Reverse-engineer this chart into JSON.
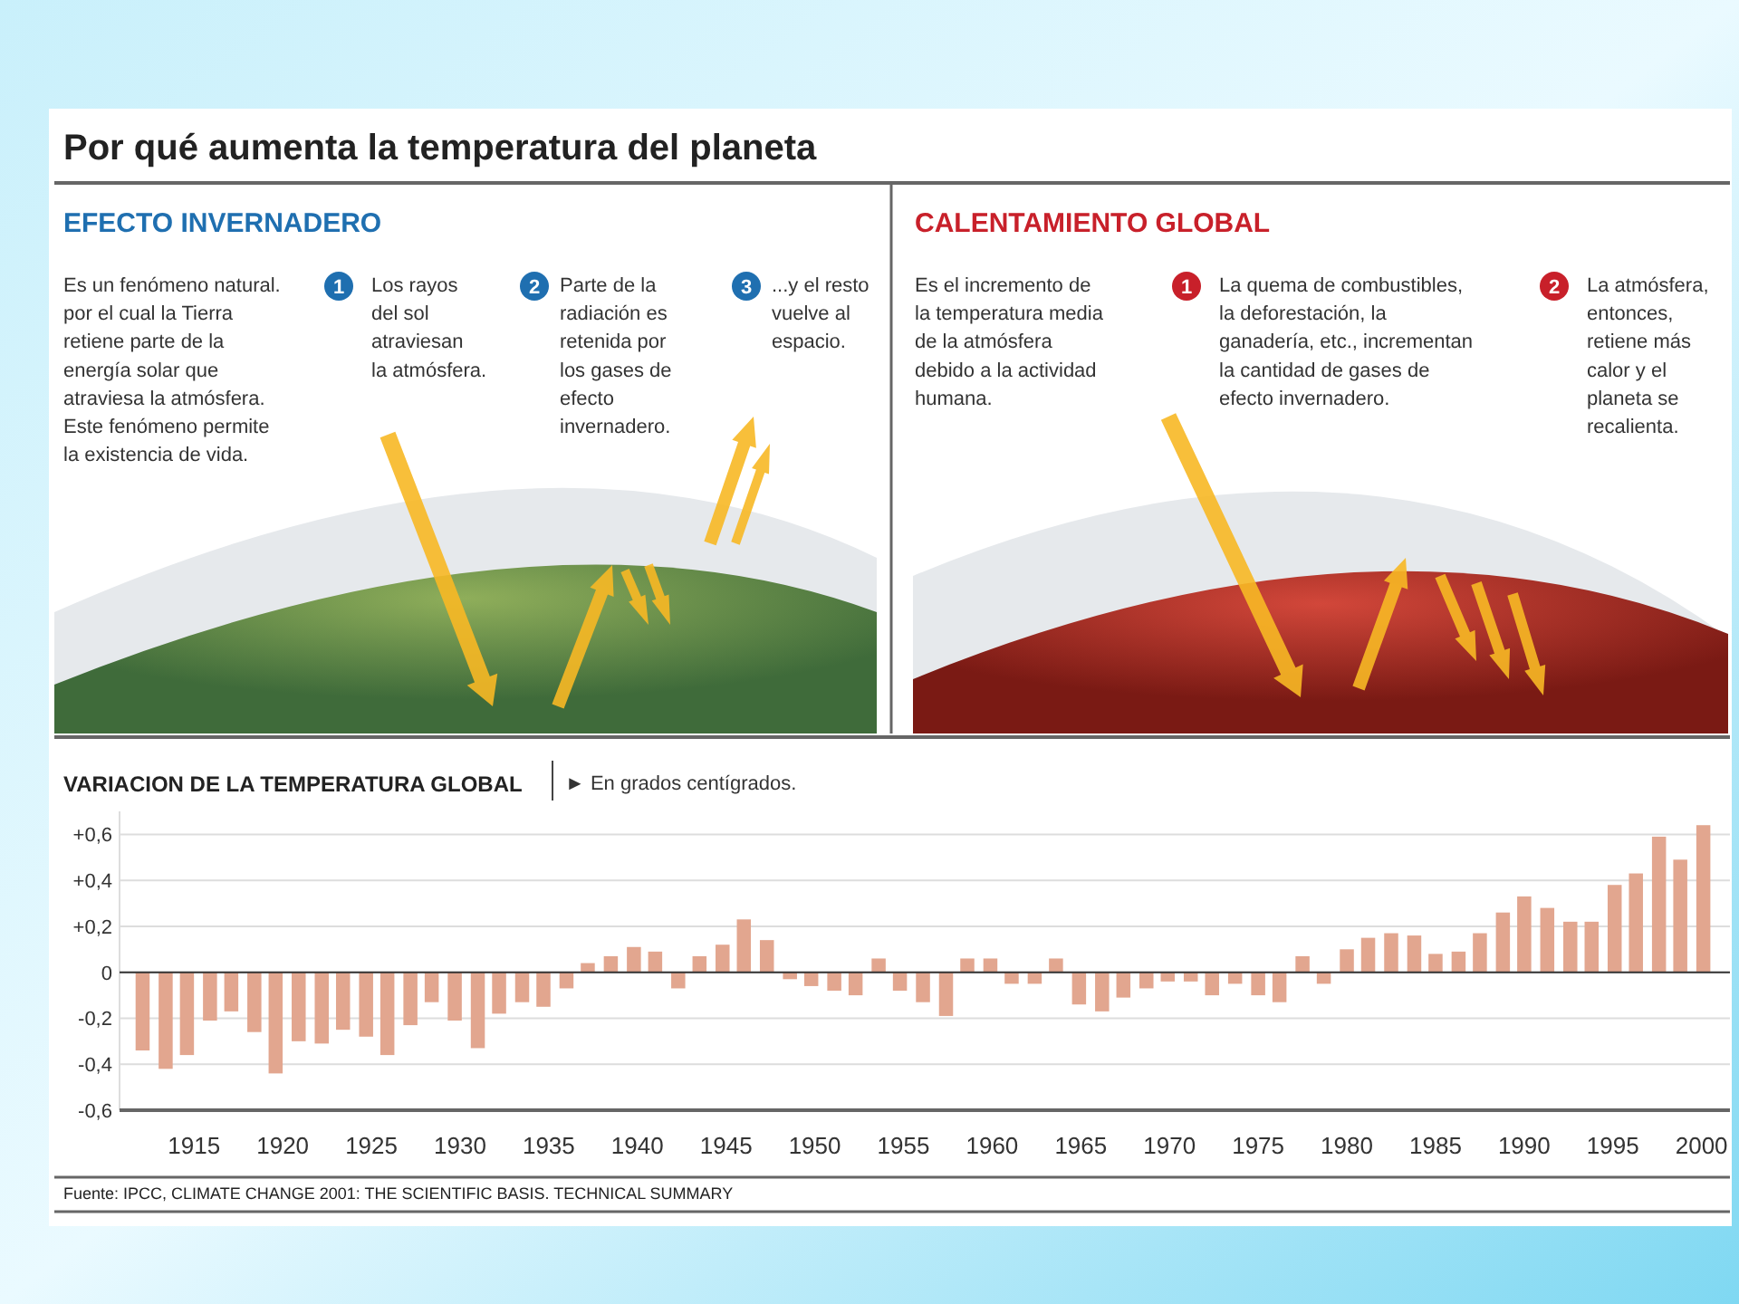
{
  "chart_data": {
    "type": "bar",
    "title": "Por qué aumenta la temperatura del planeta",
    "subtitle": "VARIACION DE LA TEMPERATURA GLOBAL",
    "annotations": [
      "EFECTO INVERNADERO",
      "Es un fenómeno natural.\npor el cual la Tierra\nretiene parte de la\nenergía solar que\natraviesa la atmósfera.\nEste fenómeno permite\nla existencia de vida.",
      "1",
      "Los rayos\ndel sol\natraviesan\nla atmósfera.",
      "2",
      "Parte de la\nradiación es\nretenida por\nlos gases de\nefecto\ninvernadero.",
      "3",
      "...y el resto\nvuelve al\nespacio.",
      "CALENTAMIENTO GLOBAL",
      "Es el incremento de\nla temperatura media\nde la atmósfera\ndebido a la actividad\nhumana.",
      "1",
      "La quema de combustibles,\nla deforestación, la\nganadería, etc., incrementan\nla cantidad de gases de\nefecto invernadero.",
      "2",
      "La atmósfera,\nentonces,\nretiene más\ncalor y el\nplaneta se\nrecalienta.",
      "► En grados centígrados.",
      "Fuente: IPCC, CLIMATE CHANGE 2001: THE SCIENTIFIC BASIS. TECHNICAL SUMMARY"
    ],
    "x": [
      1912.1,
      1913.4,
      1914.6,
      1915.9,
      1917.1,
      1918.4,
      1919.6,
      1920.9,
      1922.2,
      1923.4,
      1924.7,
      1925.9,
      1927.2,
      1928.4,
      1929.7,
      1931.0,
      1932.2,
      1933.5,
      1934.7,
      1936.0,
      1937.2,
      1938.5,
      1939.8,
      1941.0,
      1942.3,
      1943.5,
      1944.8,
      1946.0,
      1947.3,
      1948.6,
      1949.8,
      1951.1,
      1952.3,
      1953.6,
      1954.8,
      1956.1,
      1957.4,
      1958.6,
      1959.9,
      1961.1,
      1962.4,
      1963.6,
      1964.9,
      1966.2,
      1967.4,
      1968.7,
      1969.9,
      1971.2,
      1972.4,
      1973.7,
      1975.0,
      1976.2,
      1977.5,
      1978.7,
      1980.0,
      1981.2,
      1982.5,
      1983.8,
      1985.0,
      1986.3,
      1987.5,
      1988.8,
      1990.0,
      1991.3,
      1992.6,
      1993.8,
      1995.1,
      1996.3,
      1997.6,
      1998.8,
      2000.1
    ],
    "values": [
      -0.34,
      -0.42,
      -0.36,
      -0.21,
      -0.17,
      -0.26,
      -0.44,
      -0.3,
      -0.31,
      -0.25,
      -0.28,
      -0.36,
      -0.23,
      -0.13,
      -0.21,
      -0.33,
      -0.18,
      -0.13,
      -0.15,
      -0.07,
      0.04,
      0.07,
      0.11,
      0.09,
      -0.07,
      0.07,
      0.12,
      0.23,
      0.14,
      -0.03,
      -0.06,
      -0.08,
      -0.1,
      0.06,
      -0.08,
      -0.13,
      -0.19,
      0.06,
      0.06,
      -0.05,
      -0.05,
      0.06,
      -0.14,
      -0.17,
      -0.11,
      -0.07,
      -0.04,
      -0.04,
      -0.1,
      -0.05,
      -0.1,
      -0.13,
      0.07,
      -0.05,
      0.1,
      0.15,
      0.17,
      0.16,
      0.08,
      0.09,
      0.17,
      0.26,
      0.33,
      0.28,
      0.22,
      0.22,
      0.38,
      0.43,
      0.59,
      0.49,
      0.64
    ],
    "color": "#e2a68f",
    "xlim": [
      1910.8,
      2001.6
    ],
    "xticks": [
      1915,
      1920,
      1925,
      1930,
      1935,
      1940,
      1945,
      1950,
      1955,
      1960,
      1965,
      1970,
      1975,
      1980,
      1985,
      1990,
      1995,
      2000
    ],
    "ylim": [
      -0.6,
      0.7
    ],
    "yticks": [
      {
        "value": -0.6,
        "label": "-0,6"
      },
      {
        "value": -0.4,
        "label": "-0,4"
      },
      {
        "value": -0.2,
        "label": "-0,2"
      },
      0,
      {
        "value": 0.2,
        "label": "+0,2"
      },
      {
        "value": 0.4,
        "label": "+0,4"
      },
      {
        "value": 0.6,
        "label": "+0,6"
      }
    ],
    "grid": "y"
  }
}
